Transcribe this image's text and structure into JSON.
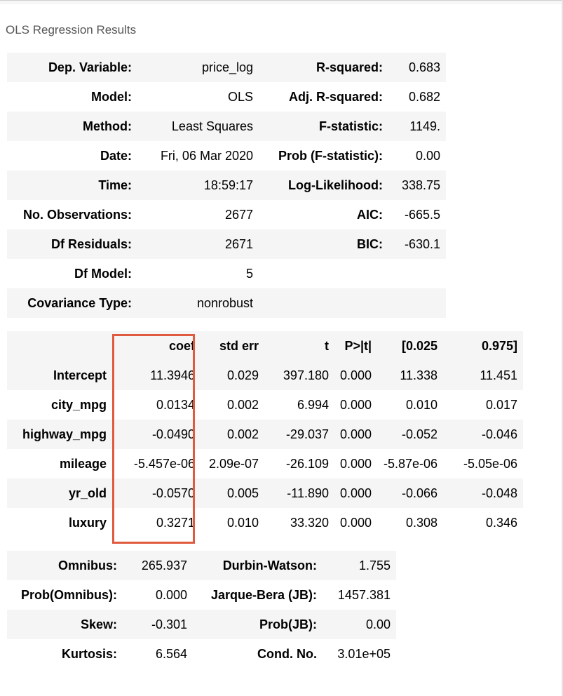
{
  "caption": "OLS Regression Results",
  "model_summary": {
    "rows": [
      [
        "Dep. Variable:",
        "price_log",
        "R-squared:",
        "0.683"
      ],
      [
        "Model:",
        "OLS",
        "Adj. R-squared:",
        "0.682"
      ],
      [
        "Method:",
        "Least Squares",
        "F-statistic:",
        "1149."
      ],
      [
        "Date:",
        "Fri, 06 Mar 2020",
        "Prob (F-statistic):",
        "0.00"
      ],
      [
        "Time:",
        "18:59:17",
        "Log-Likelihood:",
        "338.75"
      ],
      [
        "No. Observations:",
        "2677",
        "AIC:",
        "-665.5"
      ],
      [
        "Df Residuals:",
        "2671",
        "BIC:",
        "-630.1"
      ],
      [
        "Df Model:",
        "5",
        "",
        ""
      ],
      [
        "Covariance Type:",
        "nonrobust",
        "",
        ""
      ]
    ]
  },
  "coefficients": {
    "headers": [
      "",
      "coef",
      "std err",
      "t",
      "P>|t|",
      "[0.025",
      "0.975]"
    ],
    "rows": [
      [
        "Intercept",
        "11.3946",
        "0.029",
        "397.180",
        "0.000",
        "11.338",
        "11.451"
      ],
      [
        "city_mpg",
        "0.0134",
        "0.002",
        "6.994",
        "0.000",
        "0.010",
        "0.017"
      ],
      [
        "highway_mpg",
        "-0.0490",
        "0.002",
        "-29.037",
        "0.000",
        "-0.052",
        "-0.046"
      ],
      [
        "mileage",
        "-5.457e-06",
        "2.09e-07",
        "-26.109",
        "0.000",
        "-5.87e-06",
        "-5.05e-06"
      ],
      [
        "yr_old",
        "-0.0570",
        "0.005",
        "-11.890",
        "0.000",
        "-0.066",
        "-0.048"
      ],
      [
        "luxury",
        "0.3271",
        "0.010",
        "33.320",
        "0.000",
        "0.308",
        "0.346"
      ]
    ]
  },
  "diagnostics": {
    "rows": [
      [
        "Omnibus:",
        "265.937",
        "Durbin-Watson:",
        "1.755"
      ],
      [
        "Prob(Omnibus):",
        "0.000",
        "Jarque-Bera (JB):",
        "1457.381"
      ],
      [
        "Skew:",
        "-0.301",
        "Prob(JB):",
        "0.00"
      ],
      [
        "Kurtosis:",
        "6.564",
        "Cond. No.",
        "3.01e+05"
      ]
    ]
  },
  "colors": {
    "highlight": "#e05a3f",
    "stripe": "#f5f5f5"
  }
}
